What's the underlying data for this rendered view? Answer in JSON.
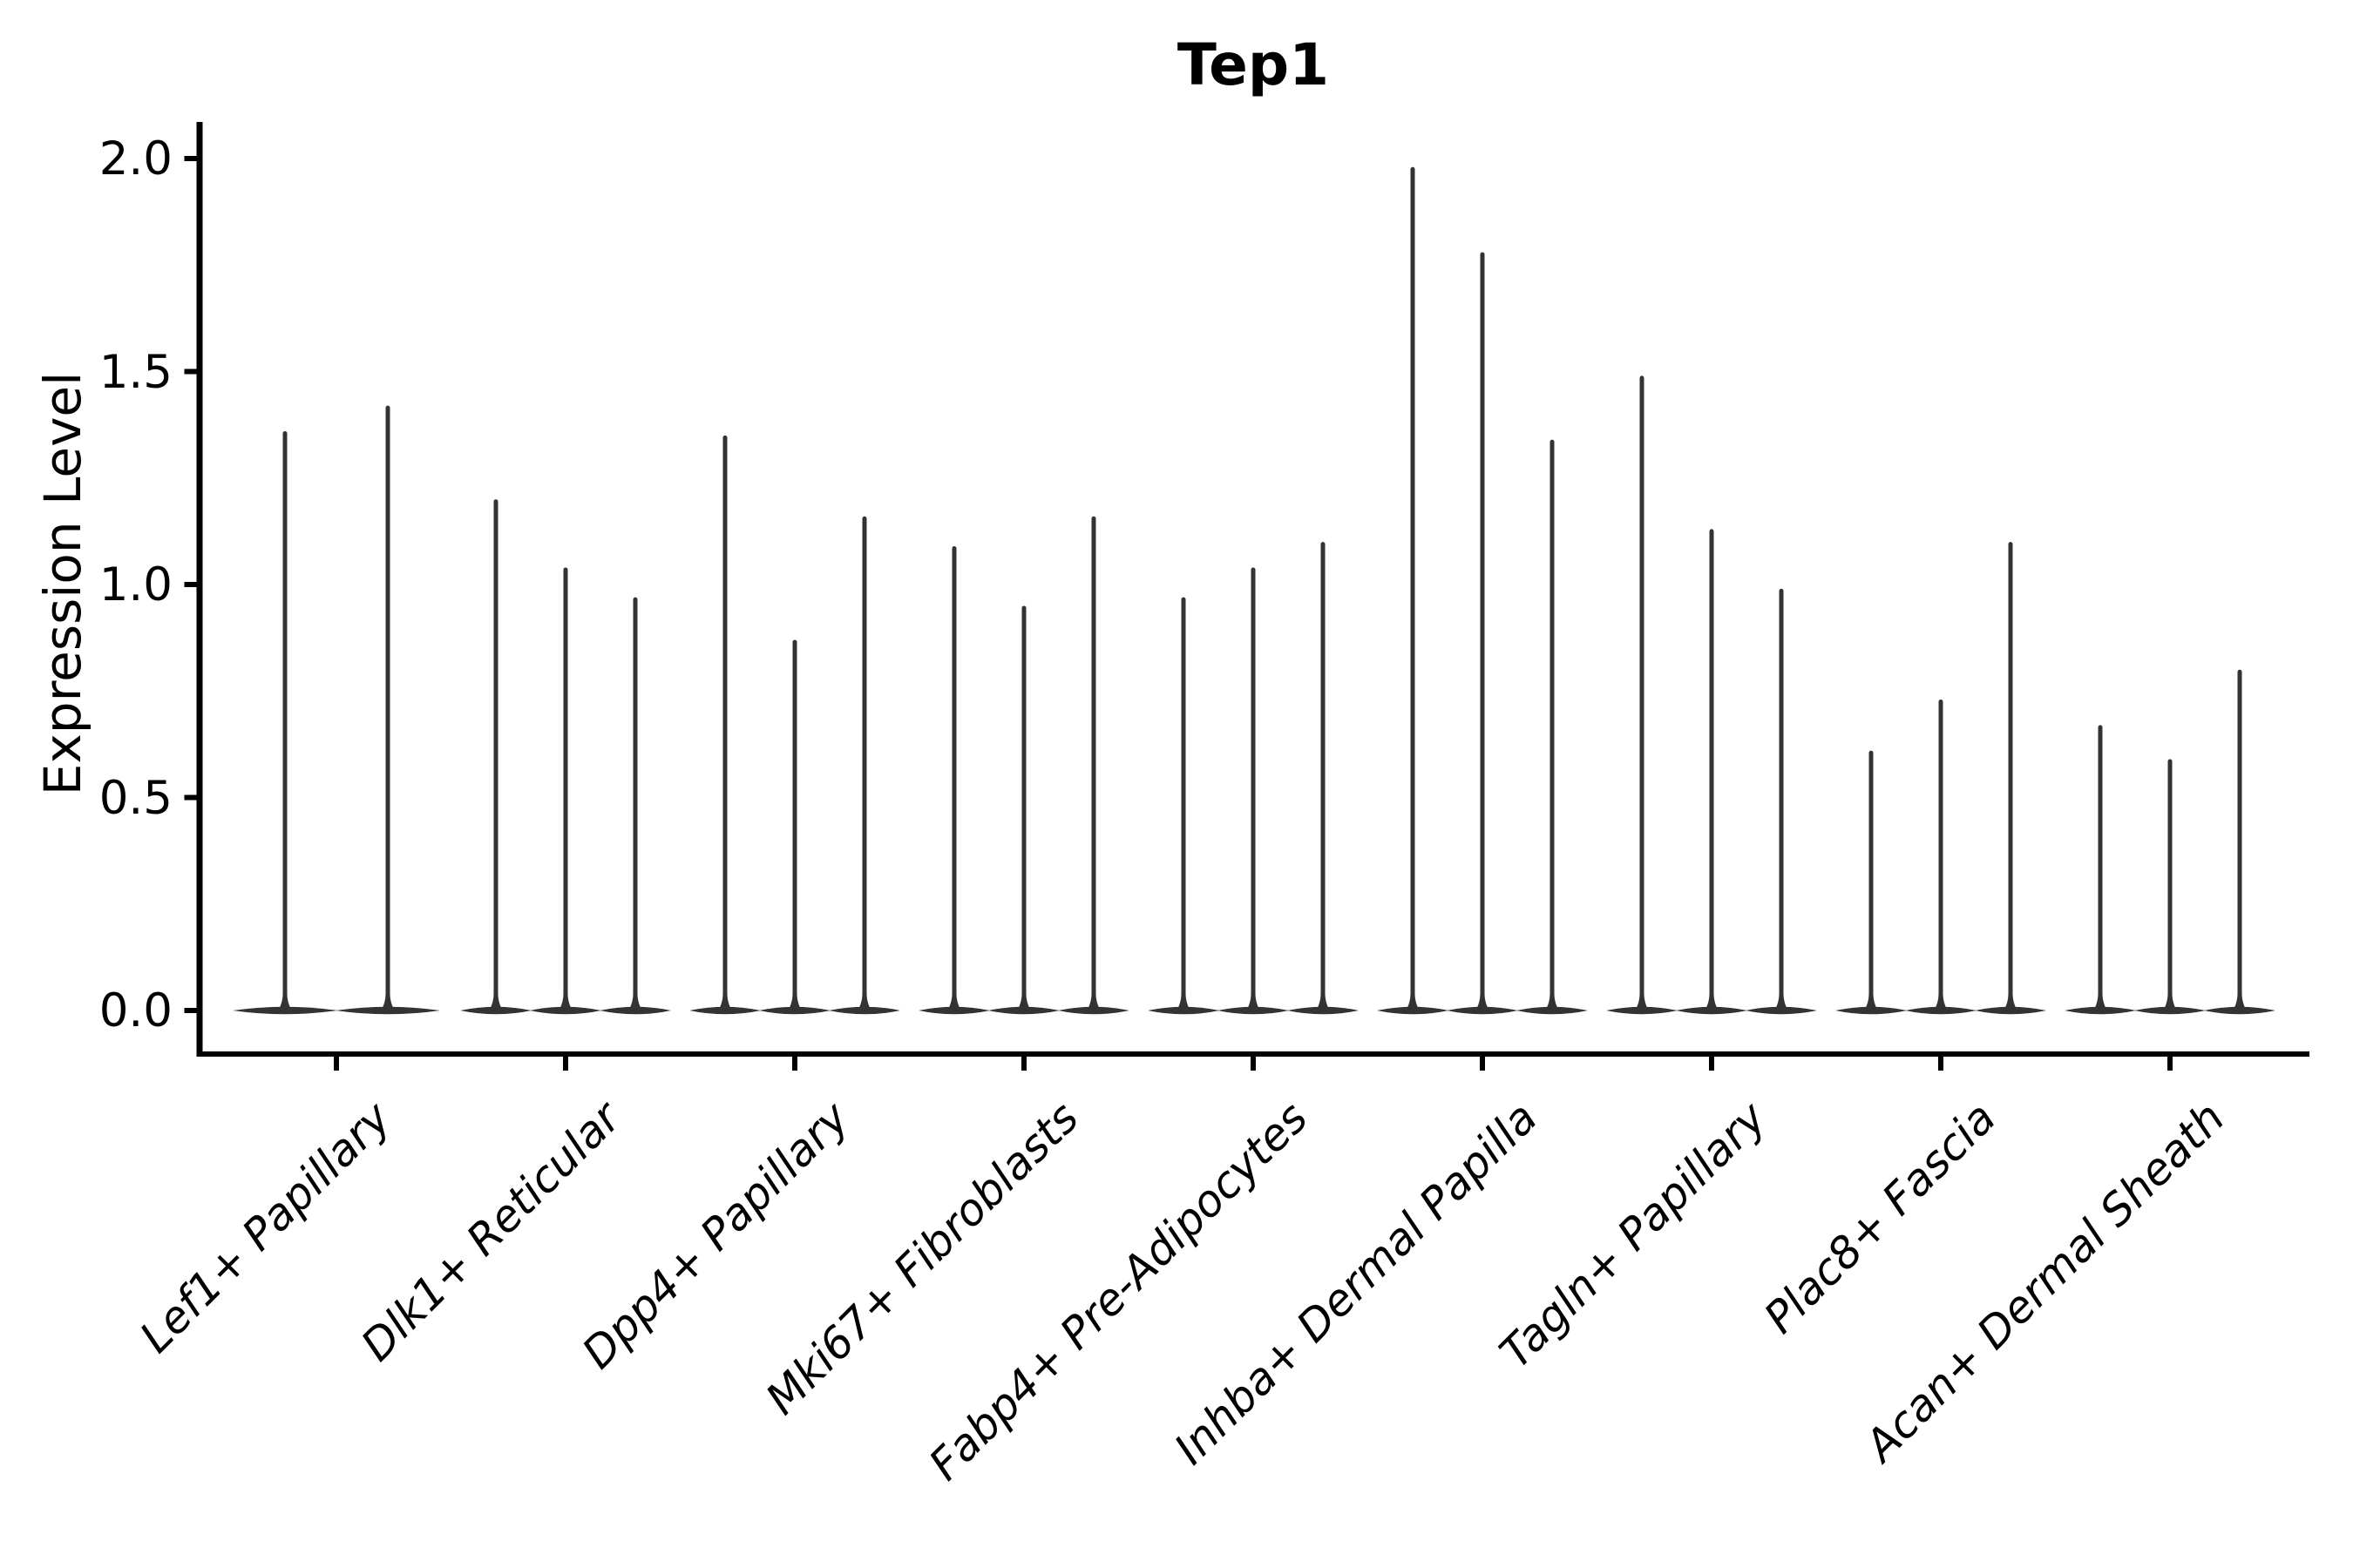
{
  "chart_data": {
    "type": "violin",
    "title": "Tep1",
    "xlabel": "",
    "ylabel": "Expression Level",
    "grid": false,
    "legend": null,
    "ylim": [
      -0.1,
      2.09
    ],
    "yticks": [
      0.0,
      0.5,
      1.0,
      1.5,
      2.0
    ],
    "ytick_labels": [
      "0.0",
      "0.5",
      "1.0",
      "1.5",
      "2.0"
    ],
    "categories": [
      "Lef1+ Papillary",
      "Dlk1+ Reticular",
      "Dpp4+ Papillary",
      "Mki67+ Fibroblasts",
      "Fabp4+ Pre-Adipocytes",
      "Inhba+ Dermal Papilla",
      "Tagln+ Papillary",
      "Plac8+ Fascia",
      "Acan+ Dermal Sheath"
    ],
    "series": [
      {
        "category": "Lef1+ Papillary",
        "violin_maxima": [
          1.36,
          1.42
        ]
      },
      {
        "category": "Dlk1+ Reticular",
        "violin_maxima": [
          1.2,
          1.04,
          0.97
        ]
      },
      {
        "category": "Dpp4+ Papillary",
        "violin_maxima": [
          1.35,
          0.87,
          1.16
        ]
      },
      {
        "category": "Mki67+ Fibroblasts",
        "violin_maxima": [
          1.09,
          0.95,
          1.16
        ]
      },
      {
        "category": "Fabp4+ Pre-Adipocytes",
        "violin_maxima": [
          0.97,
          1.04,
          1.1
        ]
      },
      {
        "category": "Inhba+ Dermal Papilla",
        "violin_maxima": [
          1.98,
          1.78,
          1.34
        ]
      },
      {
        "category": "Tagln+ Papillary",
        "violin_maxima": [
          1.49,
          1.13,
          0.99
        ]
      },
      {
        "category": "Plac8+ Fascia",
        "violin_maxima": [
          0.61,
          0.73,
          1.1
        ]
      },
      {
        "category": "Acan+ Dermal Sheath",
        "violin_maxima": [
          0.67,
          0.59,
          0.8
        ]
      }
    ],
    "violin_shape_note": "all distributions concentrated at 0 with thin tail to maximum",
    "colors": {
      "violin": "#333333",
      "axis": "#000000",
      "text": "#000000",
      "background": "#ffffff"
    }
  }
}
